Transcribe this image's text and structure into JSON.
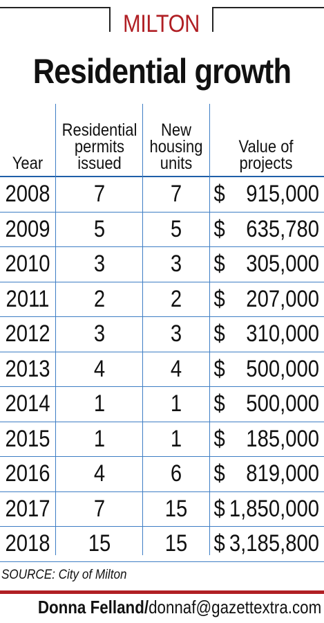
{
  "kicker": "MILTON",
  "headline": "Residential growth",
  "table": {
    "headers": {
      "year": "Year",
      "permits": "Residential\npermits\nissued",
      "units": "New\nhousing\nunits",
      "value": "Value of\nprojects"
    },
    "currency_symbol": "$",
    "rows": [
      {
        "year": "2008",
        "permits": "7",
        "units": "7",
        "value": "915,000"
      },
      {
        "year": "2009",
        "permits": "5",
        "units": "5",
        "value": "635,780"
      },
      {
        "year": "2010",
        "permits": "3",
        "units": "3",
        "value": "305,000"
      },
      {
        "year": "2011",
        "permits": "2",
        "units": "2",
        "value": "207,000"
      },
      {
        "year": "2012",
        "permits": "3",
        "units": "3",
        "value": "310,000"
      },
      {
        "year": "2013",
        "permits": "4",
        "units": "4",
        "value": "500,000"
      },
      {
        "year": "2014",
        "permits": "1",
        "units": "1",
        "value": "500,000"
      },
      {
        "year": "2015",
        "permits": "1",
        "units": "1",
        "value": "185,000"
      },
      {
        "year": "2016",
        "permits": "4",
        "units": "6",
        "value": "819,000"
      },
      {
        "year": "2017",
        "permits": "7",
        "units": "15",
        "value": "1,850,000"
      },
      {
        "year": "2018",
        "permits": "15",
        "units": "15",
        "value": "3,185,800"
      }
    ]
  },
  "source": "SOURCE: City of Milton",
  "credit": {
    "name": "Donna Felland/",
    "email": "donnaf@gazettextra.com"
  },
  "colors": {
    "accent_red": "#b01f24",
    "rule_blue": "#3d7dc4"
  }
}
